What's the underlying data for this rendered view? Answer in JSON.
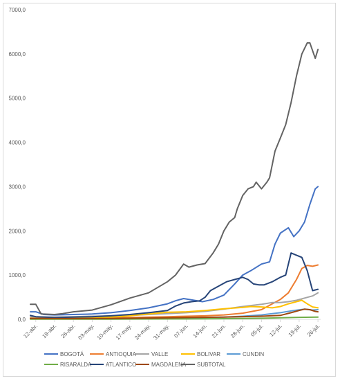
{
  "chart_data": {
    "type": "line",
    "title": "",
    "xlabel": "",
    "ylabel": "",
    "ylim": [
      0,
      7000
    ],
    "y_ticks": [
      "0,0",
      "1000,0",
      "2000,0",
      "3000,0",
      "4000,0",
      "5000,0",
      "6000,0",
      "7000,0"
    ],
    "x_ticks": [
      "12-abr.",
      "19-abr.",
      "26-abr.",
      "03-may.",
      "10-may.",
      "17-may.",
      "24-may.",
      "31-may.",
      "07-jun.",
      "14-jun.",
      "21-jun.",
      "28-jun.",
      "05-jul.",
      "12-jul.",
      "19-jul.",
      "26-jul."
    ],
    "x_tick_days": [
      0,
      7,
      14,
      21,
      28,
      35,
      42,
      49,
      56,
      63,
      70,
      77,
      84,
      91,
      98,
      105
    ],
    "x_range": [
      -2,
      106
    ],
    "grid": false,
    "legend_position": "bottom",
    "series": [
      {
        "name": "BOGOTÁ",
        "color": "#4472c4",
        "points": [
          [
            -2,
            170
          ],
          [
            0,
            170
          ],
          [
            3,
            110
          ],
          [
            7,
            100
          ],
          [
            14,
            110
          ],
          [
            21,
            120
          ],
          [
            28,
            150
          ],
          [
            35,
            200
          ],
          [
            42,
            260
          ],
          [
            49,
            350
          ],
          [
            52,
            420
          ],
          [
            55,
            470
          ],
          [
            58,
            440
          ],
          [
            62,
            400
          ],
          [
            66,
            450
          ],
          [
            70,
            550
          ],
          [
            74,
            800
          ],
          [
            77,
            1000
          ],
          [
            80,
            1100
          ],
          [
            84,
            1250
          ],
          [
            87,
            1300
          ],
          [
            89,
            1700
          ],
          [
            91,
            1950
          ],
          [
            94,
            2070
          ],
          [
            96,
            1870
          ],
          [
            98,
            2000
          ],
          [
            100,
            2200
          ],
          [
            102,
            2600
          ],
          [
            104,
            2950
          ],
          [
            105,
            3000
          ]
        ]
      },
      {
        "name": "ANTIOQUIA",
        "color": "#ed7d31",
        "points": [
          [
            -2,
            30
          ],
          [
            7,
            20
          ],
          [
            14,
            25
          ],
          [
            21,
            30
          ],
          [
            28,
            35
          ],
          [
            35,
            40
          ],
          [
            42,
            50
          ],
          [
            49,
            60
          ],
          [
            56,
            70
          ],
          [
            63,
            80
          ],
          [
            70,
            100
          ],
          [
            77,
            140
          ],
          [
            84,
            220
          ],
          [
            88,
            350
          ],
          [
            91,
            450
          ],
          [
            94,
            600
          ],
          [
            97,
            900
          ],
          [
            99,
            1150
          ],
          [
            101,
            1220
          ],
          [
            103,
            1200
          ],
          [
            105,
            1230
          ]
        ]
      },
      {
        "name": "VALLE",
        "color": "#a5a5a5",
        "points": [
          [
            -2,
            60
          ],
          [
            7,
            50
          ],
          [
            14,
            60
          ],
          [
            21,
            70
          ],
          [
            28,
            80
          ],
          [
            35,
            90
          ],
          [
            42,
            110
          ],
          [
            49,
            130
          ],
          [
            56,
            150
          ],
          [
            63,
            180
          ],
          [
            70,
            230
          ],
          [
            77,
            290
          ],
          [
            84,
            340
          ],
          [
            88,
            380
          ],
          [
            91,
            380
          ],
          [
            94,
            400
          ],
          [
            97,
            430
          ],
          [
            100,
            480
          ],
          [
            103,
            530
          ],
          [
            105,
            600
          ]
        ]
      },
      {
        "name": "BOLIVAR",
        "color": "#ffc000",
        "points": [
          [
            -2,
            20
          ],
          [
            7,
            15
          ],
          [
            14,
            20
          ],
          [
            21,
            30
          ],
          [
            28,
            50
          ],
          [
            35,
            80
          ],
          [
            42,
            120
          ],
          [
            49,
            160
          ],
          [
            56,
            170
          ],
          [
            63,
            200
          ],
          [
            70,
            240
          ],
          [
            77,
            270
          ],
          [
            80,
            290
          ],
          [
            84,
            280
          ],
          [
            88,
            260
          ],
          [
            91,
            290
          ],
          [
            94,
            350
          ],
          [
            97,
            400
          ],
          [
            99,
            430
          ],
          [
            101,
            350
          ],
          [
            103,
            280
          ],
          [
            105,
            260
          ]
        ]
      },
      {
        "name": "CUNDIN",
        "color": "#5b9bd5",
        "points": [
          [
            -2,
            10
          ],
          [
            14,
            10
          ],
          [
            28,
            15
          ],
          [
            42,
            20
          ],
          [
            56,
            30
          ],
          [
            63,
            40
          ],
          [
            70,
            50
          ],
          [
            77,
            70
          ],
          [
            84,
            100
          ],
          [
            91,
            150
          ],
          [
            96,
            200
          ],
          [
            100,
            230
          ],
          [
            103,
            210
          ],
          [
            105,
            220
          ]
        ]
      },
      {
        "name": "RISARALDA",
        "color": "#70ad47",
        "points": [
          [
            -2,
            5
          ],
          [
            14,
            5
          ],
          [
            28,
            5
          ],
          [
            42,
            8
          ],
          [
            56,
            10
          ],
          [
            70,
            15
          ],
          [
            84,
            25
          ],
          [
            91,
            35
          ],
          [
            98,
            45
          ],
          [
            105,
            50
          ]
        ]
      },
      {
        "name": "ATLANTICO",
        "color": "#264478",
        "points": [
          [
            -2,
            90
          ],
          [
            0,
            60
          ],
          [
            7,
            40
          ],
          [
            14,
            50
          ],
          [
            21,
            60
          ],
          [
            28,
            80
          ],
          [
            35,
            110
          ],
          [
            42,
            150
          ],
          [
            49,
            200
          ],
          [
            52,
            300
          ],
          [
            55,
            370
          ],
          [
            58,
            400
          ],
          [
            61,
            420
          ],
          [
            63,
            500
          ],
          [
            65,
            650
          ],
          [
            68,
            750
          ],
          [
            71,
            850
          ],
          [
            74,
            900
          ],
          [
            77,
            950
          ],
          [
            79,
            900
          ],
          [
            81,
            800
          ],
          [
            83,
            780
          ],
          [
            85,
            780
          ],
          [
            88,
            850
          ],
          [
            91,
            950
          ],
          [
            93,
            1000
          ],
          [
            95,
            1500
          ],
          [
            97,
            1450
          ],
          [
            99,
            1400
          ],
          [
            101,
            1100
          ],
          [
            103,
            650
          ],
          [
            105,
            680
          ]
        ]
      },
      {
        "name": "MAGDALENA",
        "color": "#9e480e",
        "points": [
          [
            -2,
            20
          ],
          [
            14,
            15
          ],
          [
            28,
            20
          ],
          [
            42,
            30
          ],
          [
            56,
            40
          ],
          [
            70,
            50
          ],
          [
            84,
            70
          ],
          [
            91,
            90
          ],
          [
            95,
            150
          ],
          [
            98,
            200
          ],
          [
            100,
            230
          ],
          [
            102,
            220
          ],
          [
            104,
            180
          ],
          [
            105,
            170
          ]
        ]
      },
      {
        "name": "SUBTOTAL",
        "color": "#636363",
        "points": [
          [
            -2,
            340
          ],
          [
            0,
            340
          ],
          [
            2,
            120
          ],
          [
            7,
            110
          ],
          [
            10,
            130
          ],
          [
            14,
            170
          ],
          [
            21,
            210
          ],
          [
            28,
            330
          ],
          [
            35,
            480
          ],
          [
            42,
            600
          ],
          [
            49,
            850
          ],
          [
            52,
            1000
          ],
          [
            55,
            1250
          ],
          [
            57,
            1180
          ],
          [
            60,
            1230
          ],
          [
            63,
            1260
          ],
          [
            66,
            1500
          ],
          [
            68,
            1700
          ],
          [
            70,
            2000
          ],
          [
            72,
            2200
          ],
          [
            74,
            2300
          ],
          [
            75,
            2500
          ],
          [
            77,
            2800
          ],
          [
            79,
            2950
          ],
          [
            81,
            3000
          ],
          [
            82,
            3100
          ],
          [
            84,
            2950
          ],
          [
            86,
            3100
          ],
          [
            87,
            3200
          ],
          [
            89,
            3800
          ],
          [
            91,
            4100
          ],
          [
            93,
            4400
          ],
          [
            95,
            4900
          ],
          [
            97,
            5500
          ],
          [
            99,
            6000
          ],
          [
            101,
            6250
          ],
          [
            102,
            6250
          ],
          [
            104,
            5900
          ],
          [
            105,
            6100
          ]
        ]
      }
    ]
  }
}
